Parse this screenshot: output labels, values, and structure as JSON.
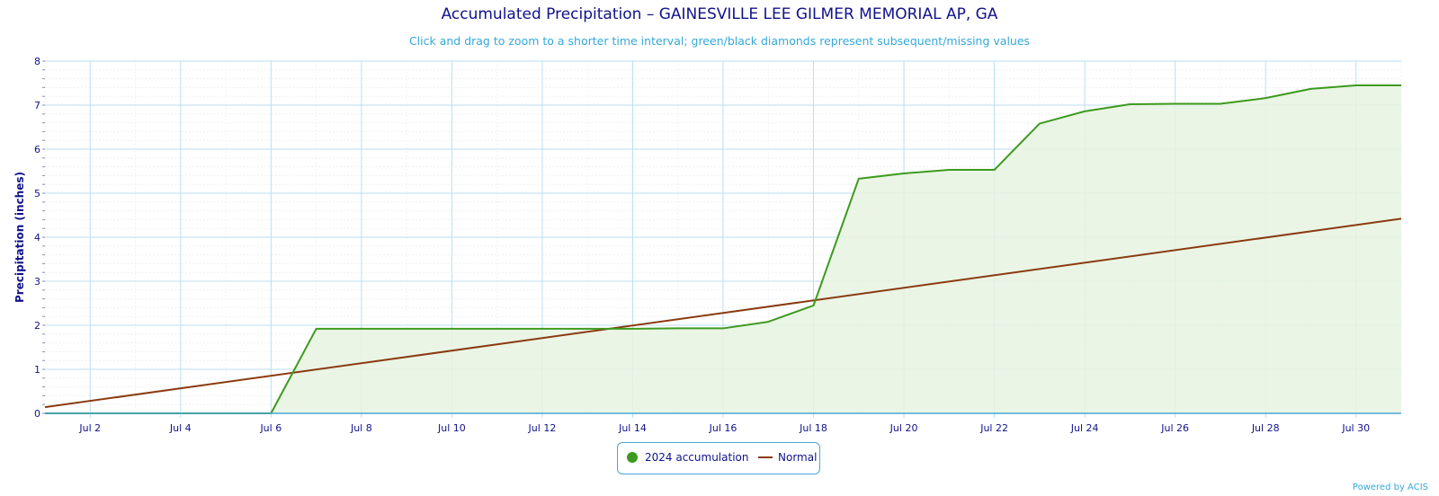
{
  "chart_data": {
    "type": "area",
    "title": "Accumulated Precipitation – GAINESVILLE LEE GILMER MEMORIAL AP, GA",
    "subtitle": "Click and drag to zoom to a shorter time interval; green/black diamonds represent subsequent/missing values",
    "xlabel": "",
    "ylabel": "Precipitation (inches)",
    "ylim": [
      0,
      8
    ],
    "yticks": [
      "0",
      "1",
      "2",
      "3",
      "4",
      "5",
      "6",
      "7",
      "8"
    ],
    "xlim": [
      "2024-07-01",
      "2024-07-31"
    ],
    "xticks": [
      "Jul 2",
      "Jul 4",
      "Jul 6",
      "Jul 8",
      "Jul 10",
      "Jul 12",
      "Jul 14",
      "Jul 16",
      "Jul 18",
      "Jul 20",
      "Jul 22",
      "Jul 24",
      "Jul 26",
      "Jul 28",
      "Jul 30"
    ],
    "grid": true,
    "legend_position": "bottom-center",
    "series": [
      {
        "name": "2024 accumulation",
        "color": "#3d9a1e",
        "fill": "#e6f3e0",
        "x": [
          "2024-07-01",
          "2024-07-02",
          "2024-07-03",
          "2024-07-04",
          "2024-07-05",
          "2024-07-06",
          "2024-07-07",
          "2024-07-08",
          "2024-07-09",
          "2024-07-10",
          "2024-07-11",
          "2024-07-12",
          "2024-07-13",
          "2024-07-14",
          "2024-07-15",
          "2024-07-16",
          "2024-07-17",
          "2024-07-18",
          "2024-07-19",
          "2024-07-20",
          "2024-07-21",
          "2024-07-22",
          "2024-07-23",
          "2024-07-24",
          "2024-07-25",
          "2024-07-26",
          "2024-07-27",
          "2024-07-28",
          "2024-07-29",
          "2024-07-30",
          "2024-07-31"
        ],
        "values": [
          0,
          0,
          0,
          0,
          0,
          0,
          1.92,
          1.92,
          1.92,
          1.92,
          1.92,
          1.92,
          1.92,
          1.92,
          1.93,
          1.93,
          2.08,
          2.45,
          5.33,
          5.45,
          5.53,
          5.53,
          6.58,
          6.86,
          7.02,
          7.03,
          7.03,
          7.16,
          7.37,
          7.45,
          7.45
        ]
      },
      {
        "name": "Normal",
        "color": "#8b3a0f",
        "x": [
          "2024-07-01",
          "2024-07-31"
        ],
        "values": [
          0.14,
          4.42
        ]
      }
    ]
  },
  "legend": {
    "accum_label": "2024 accumulation",
    "normal_label": "Normal"
  },
  "credit": "Powered by ACIS"
}
